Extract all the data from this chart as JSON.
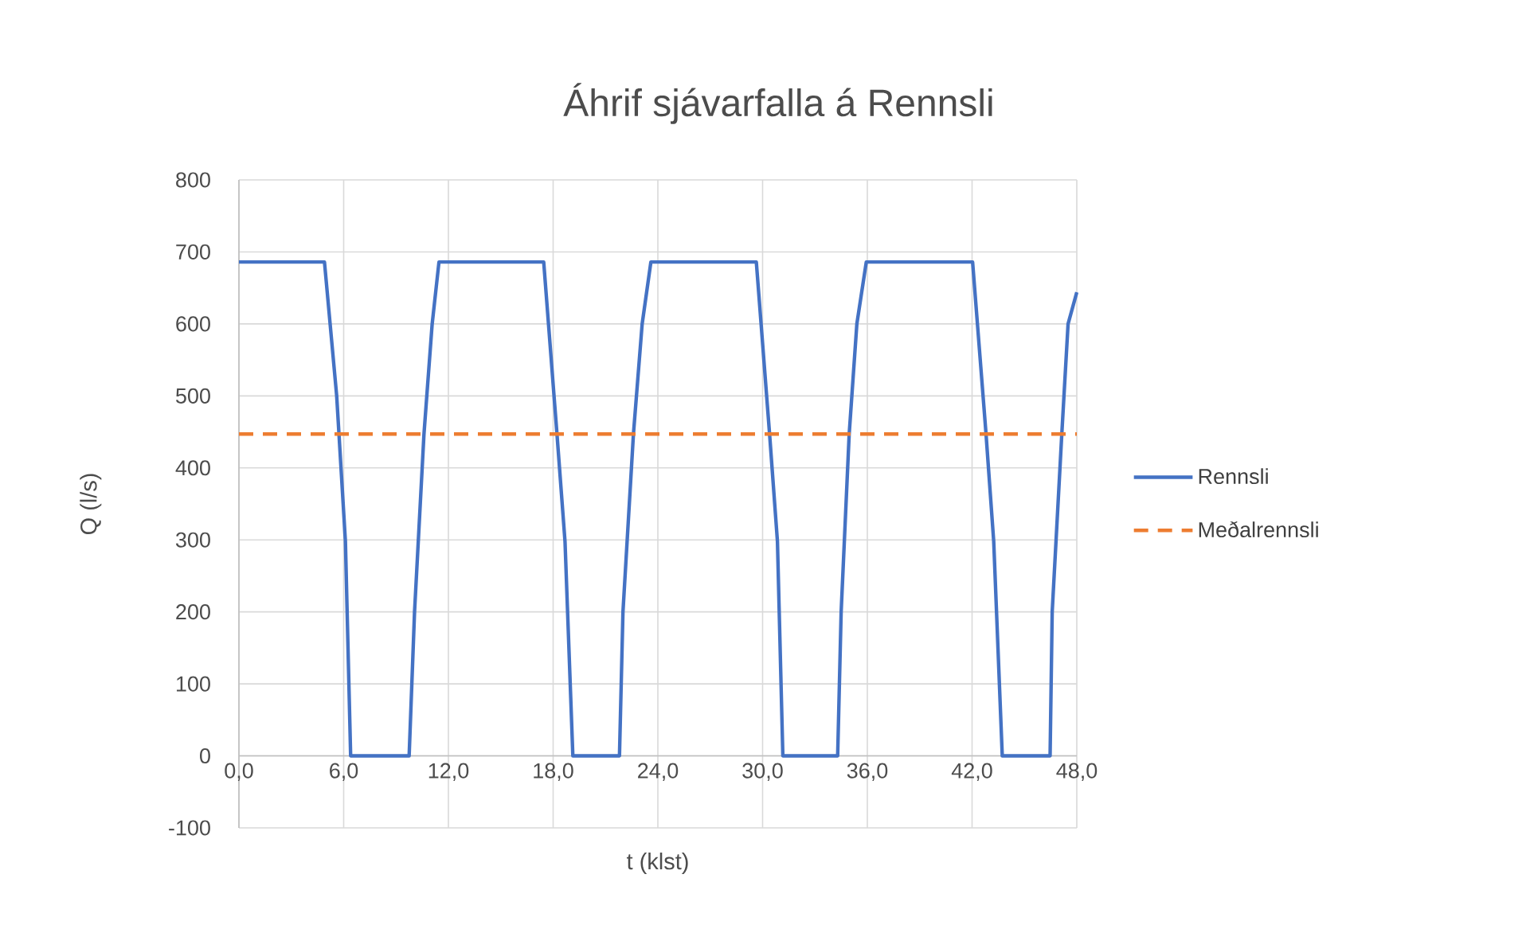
{
  "chart_data": {
    "type": "line",
    "title": "Áhrif sjávarfalla á Rennsli",
    "xlabel": "t (klst)",
    "ylabel": "Q (l/s)",
    "xlim": [
      0,
      48
    ],
    "ylim": [
      -100,
      800
    ],
    "xticks": [
      {
        "value": 0,
        "label": "0,0"
      },
      {
        "value": 6,
        "label": "6,0"
      },
      {
        "value": 12,
        "label": "12,0"
      },
      {
        "value": 18,
        "label": "18,0"
      },
      {
        "value": 24,
        "label": "24,0"
      },
      {
        "value": 30,
        "label": "30,0"
      },
      {
        "value": 36,
        "label": "36,0"
      },
      {
        "value": 42,
        "label": "42,0"
      },
      {
        "value": 48,
        "label": "48,0"
      }
    ],
    "yticks": [
      -100,
      0,
      100,
      200,
      300,
      400,
      500,
      600,
      700,
      800
    ],
    "grid": true,
    "legend": "right",
    "marker": "none",
    "series": [
      {
        "name": "Rennsli",
        "color": "#4472c4",
        "line_style": "solid",
        "x": [
          0,
          4.9,
          5.6,
          6.1,
          6.4,
          9.75,
          10.06,
          10.6,
          11.07,
          11.46,
          17.46,
          18.22,
          18.68,
          19.13,
          21.8,
          22.0,
          22.6,
          23.1,
          23.6,
          29.64,
          30.4,
          30.85,
          31.16,
          34.3,
          34.5,
          34.96,
          35.4,
          35.94,
          42.03,
          42.8,
          43.24,
          43.73,
          46.47,
          46.59,
          47.14,
          47.5,
          48.0
        ],
        "values": [
          686,
          686,
          500,
          298,
          0,
          0,
          200,
          447,
          600,
          686,
          686,
          447,
          298,
          0,
          0,
          200,
          447,
          600,
          686,
          686,
          447,
          298,
          0,
          0,
          200,
          447,
          600,
          686,
          686,
          447,
          298,
          0,
          0,
          200,
          447,
          600,
          644
        ]
      },
      {
        "name": "Meðalrennsli",
        "color": "#ed7d31",
        "line_style": "dashed",
        "x": [
          0,
          48
        ],
        "values": [
          447,
          447
        ]
      }
    ]
  }
}
